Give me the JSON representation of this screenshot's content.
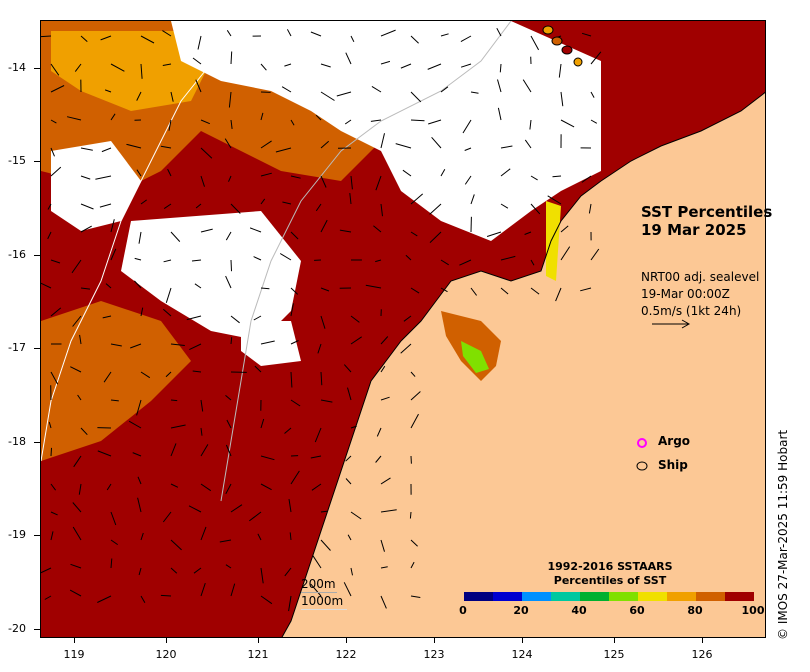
{
  "title": {
    "line1": "SST Percentiles",
    "line2": "19 Mar 2025"
  },
  "current_legend": {
    "line1": "NRT00 adj. sealevel",
    "line2": "19-Mar 00:00Z",
    "line3": "0.5m/s (1kt 24h)"
  },
  "markers": {
    "argo": "Argo",
    "ship": "Ship"
  },
  "isobaths": {
    "shallow": "200m",
    "deep": "1000m"
  },
  "colorbar": {
    "title_line1": "1992-2016 SSTAARS",
    "title_line2": "Percentiles of SST",
    "labels": [
      "0",
      "20",
      "40",
      "60",
      "80",
      "100"
    ],
    "colors": [
      "#000080",
      "#0000d0",
      "#0090ff",
      "#00c8a0",
      "#00b030",
      "#80e000",
      "#f0e000",
      "#f0a000",
      "#d06000",
      "#a00000"
    ]
  },
  "credit": "© IMOS 27-Mar-2025 11:59 Hobart",
  "axes": {
    "lat_ticks": [
      "-14",
      "-15",
      "-16",
      "-17",
      "-18",
      "-19",
      "-20"
    ],
    "lon_ticks": [
      "119",
      "120",
      "121",
      "122",
      "123",
      "124",
      "125",
      "126"
    ]
  },
  "colors": {
    "land": "#fcc895",
    "cloud": "#ffffff",
    "sst_high": "#a00000",
    "sst_mid": "#d06000",
    "sst_low": "#f0a000",
    "argo": "#ff00ff"
  }
}
